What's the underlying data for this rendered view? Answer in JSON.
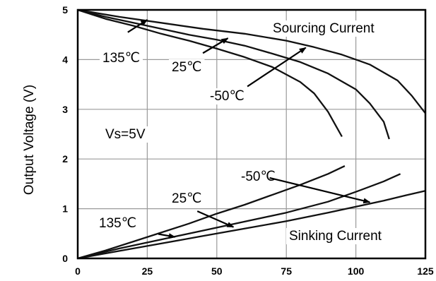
{
  "chart_data": {
    "type": "line",
    "title": "",
    "xlabel": "",
    "ylabel": "Output Voltage (V)",
    "xlim": [
      0,
      125
    ],
    "ylim": [
      0,
      5
    ],
    "xticks": [
      0,
      25,
      50,
      75,
      100,
      125
    ],
    "yticks": [
      0,
      1,
      2,
      3,
      4,
      5
    ],
    "grid": true,
    "series": [
      {
        "name": "Sourcing 135℃",
        "group": "sourcing",
        "points": [
          [
            0,
            5.0
          ],
          [
            10,
            4.82
          ],
          [
            20,
            4.68
          ],
          [
            30,
            4.52
          ],
          [
            40,
            4.38
          ],
          [
            50,
            4.22
          ],
          [
            60,
            4.05
          ],
          [
            70,
            3.85
          ],
          [
            80,
            3.55
          ],
          [
            85,
            3.32
          ],
          [
            90,
            2.95
          ],
          [
            93,
            2.65
          ],
          [
            95,
            2.45
          ]
        ]
      },
      {
        "name": "Sourcing 25℃",
        "group": "sourcing",
        "points": [
          [
            0,
            5.0
          ],
          [
            10,
            4.86
          ],
          [
            20,
            4.74
          ],
          [
            30,
            4.62
          ],
          [
            40,
            4.5
          ],
          [
            50,
            4.4
          ],
          [
            60,
            4.28
          ],
          [
            70,
            4.12
          ],
          [
            80,
            3.95
          ],
          [
            90,
            3.72
          ],
          [
            100,
            3.4
          ],
          [
            105,
            3.12
          ],
          [
            110,
            2.75
          ],
          [
            112,
            2.4
          ]
        ]
      },
      {
        "name": "Sourcing -50℃",
        "group": "sourcing",
        "points": [
          [
            0,
            5.0
          ],
          [
            15,
            4.86
          ],
          [
            30,
            4.74
          ],
          [
            45,
            4.62
          ],
          [
            60,
            4.52
          ],
          [
            75,
            4.38
          ],
          [
            85,
            4.25
          ],
          [
            95,
            4.1
          ],
          [
            105,
            3.9
          ],
          [
            115,
            3.58
          ],
          [
            120,
            3.28
          ],
          [
            125,
            2.92
          ]
        ]
      },
      {
        "name": "Sinking 135℃",
        "group": "sinking",
        "points": [
          [
            0,
            0
          ],
          [
            10,
            0.16
          ],
          [
            20,
            0.34
          ],
          [
            30,
            0.52
          ],
          [
            40,
            0.7
          ],
          [
            50,
            0.9
          ],
          [
            60,
            1.08
          ],
          [
            70,
            1.28
          ],
          [
            80,
            1.48
          ],
          [
            90,
            1.7
          ],
          [
            96,
            1.86
          ]
        ]
      },
      {
        "name": "Sinking 25℃",
        "group": "sinking",
        "points": [
          [
            0,
            0
          ],
          [
            15,
            0.2
          ],
          [
            30,
            0.38
          ],
          [
            45,
            0.56
          ],
          [
            60,
            0.74
          ],
          [
            75,
            0.92
          ],
          [
            90,
            1.14
          ],
          [
            100,
            1.34
          ],
          [
            110,
            1.55
          ],
          [
            116,
            1.7
          ]
        ]
      },
      {
        "name": "Sinking -50℃",
        "group": "sinking",
        "points": [
          [
            0,
            0
          ],
          [
            15,
            0.15
          ],
          [
            30,
            0.3
          ],
          [
            45,
            0.45
          ],
          [
            60,
            0.6
          ],
          [
            75,
            0.75
          ],
          [
            90,
            0.92
          ],
          [
            100,
            1.04
          ],
          [
            110,
            1.16
          ],
          [
            118,
            1.27
          ],
          [
            125,
            1.36
          ]
        ]
      }
    ],
    "annotations": {
      "sourcing_current": "Sourcing Current",
      "sinking_current": "Sinking Current",
      "vs": "Vs=5V",
      "src_135": "135℃",
      "src_25": "25℃",
      "src_m50": "-50℃",
      "snk_135": "135℃",
      "snk_25": "25℃",
      "snk_m50": "-50℃"
    },
    "arrows": [
      {
        "from": [
          18,
          4.55
        ],
        "to": [
          25,
          4.8
        ]
      },
      {
        "from": [
          45,
          4.13
        ],
        "to": [
          54,
          4.43
        ]
      },
      {
        "from": [
          61,
          3.46
        ],
        "to": [
          82,
          4.24
        ]
      },
      {
        "from": [
          29,
          0.49
        ],
        "to": [
          35,
          0.43
        ]
      },
      {
        "from": [
          43,
          0.95
        ],
        "to": [
          56,
          0.63
        ]
      },
      {
        "from": [
          69,
          1.62
        ],
        "to": [
          105,
          1.13
        ]
      }
    ]
  }
}
